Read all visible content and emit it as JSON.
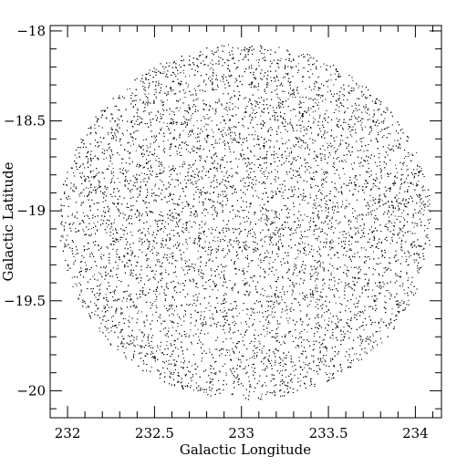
{
  "chart_data": {
    "type": "scatter",
    "title": "",
    "xlabel": "Galactic Longitude",
    "ylabel": "Galactic Latitude",
    "xlim": [
      231.9,
      234.15
    ],
    "ylim": [
      -20.15,
      -17.97
    ],
    "x_reversed": false,
    "x_ticks": [
      232,
      232.5,
      233,
      233.5,
      234
    ],
    "x_tick_labels": [
      "232",
      "232.5",
      "233",
      "233.5",
      "234"
    ],
    "y_ticks": [
      -18,
      -18.5,
      -19,
      -19.5,
      -20
    ],
    "y_tick_labels": [
      "−18",
      "−18.5",
      "−19",
      "−19.5",
      "−20"
    ],
    "grid": false,
    "legend": "none",
    "marker_color": "#000000",
    "field": {
      "shape": "circle",
      "center": [
        233.02,
        -19.06
      ],
      "radius_deg_lat": 0.99,
      "radius_deg_lon": 1.07,
      "approx_point_count": 16000
    }
  }
}
